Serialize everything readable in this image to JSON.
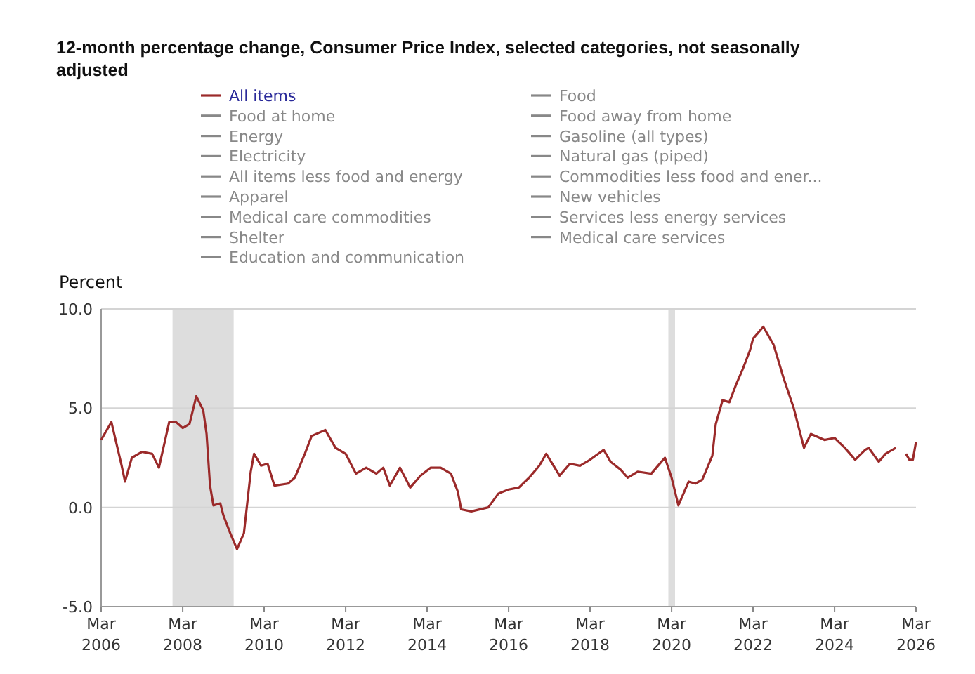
{
  "chart_data": {
    "type": "line",
    "title": "12-month percentage change, Consumer Price Index, selected categories, not seasonally adjusted",
    "ylabel": "Percent",
    "x": [
      "2006-03",
      "2006-06",
      "2006-09",
      "2006-10",
      "2006-12",
      "2007-03",
      "2007-06",
      "2007-08",
      "2007-11",
      "2008-01",
      "2008-03",
      "2008-05",
      "2008-07",
      "2008-09",
      "2008-10",
      "2008-11",
      "2008-12",
      "2009-02",
      "2009-03",
      "2009-05",
      "2009-07",
      "2009-09",
      "2009-11",
      "2009-12",
      "2010-02",
      "2010-04",
      "2010-06",
      "2010-10",
      "2010-12",
      "2011-03",
      "2011-05",
      "2011-09",
      "2011-12",
      "2012-03",
      "2012-06",
      "2012-09",
      "2012-12",
      "2013-02",
      "2013-04",
      "2013-07",
      "2013-10",
      "2014-01",
      "2014-04",
      "2014-07",
      "2014-10",
      "2014-12",
      "2015-01",
      "2015-04",
      "2015-09",
      "2015-12",
      "2016-03",
      "2016-06",
      "2016-09",
      "2016-12",
      "2017-02",
      "2017-06",
      "2017-09",
      "2017-12",
      "2018-03",
      "2018-07",
      "2018-09",
      "2018-12",
      "2019-02",
      "2019-05",
      "2019-09",
      "2019-12",
      "2020-01",
      "2020-03",
      "2020-05",
      "2020-08",
      "2020-10",
      "2020-12",
      "2021-03",
      "2021-04",
      "2021-06",
      "2021-08",
      "2021-10",
      "2021-12",
      "2022-02",
      "2022-03",
      "2022-06",
      "2022-09",
      "2022-12",
      "2023-03",
      "2023-06",
      "2023-08",
      "2023-12",
      "2024-03",
      "2024-06",
      "2024-09",
      "2024-12",
      "2025-01",
      "2025-04",
      "2025-06",
      "2025-09",
      "2025-10",
      "2025-12",
      "2026-01",
      "2026-02",
      "2026-03"
    ],
    "series": [
      {
        "name": "All items",
        "color": "#9b2a2a",
        "values": [
          3.4,
          4.3,
          2.1,
          1.3,
          2.5,
          2.8,
          2.7,
          2.0,
          4.3,
          4.3,
          4.0,
          4.2,
          5.6,
          4.9,
          3.7,
          1.1,
          0.1,
          0.2,
          -0.4,
          -1.3,
          -2.1,
          -1.3,
          1.8,
          2.7,
          2.1,
          2.2,
          1.1,
          1.2,
          1.5,
          2.7,
          3.6,
          3.9,
          3.0,
          2.7,
          1.7,
          2.0,
          1.7,
          2.0,
          1.1,
          2.0,
          1.0,
          1.6,
          2.0,
          2.0,
          1.7,
          0.8,
          -0.1,
          -0.2,
          0.0,
          0.7,
          0.9,
          1.0,
          1.5,
          2.1,
          2.7,
          1.6,
          2.2,
          2.1,
          2.4,
          2.9,
          2.3,
          1.9,
          1.5,
          1.8,
          1.7,
          2.3,
          2.5,
          1.5,
          0.1,
          1.3,
          1.2,
          1.4,
          2.6,
          4.2,
          5.4,
          5.3,
          6.2,
          7.0,
          7.9,
          8.5,
          9.1,
          8.2,
          6.5,
          5.0,
          3.0,
          3.7,
          3.4,
          3.5,
          3.0,
          2.4,
          2.9,
          3.0,
          2.3,
          2.7,
          3.0,
          null,
          2.7,
          2.4,
          2.4,
          3.3
        ]
      },
      {
        "name": "Food",
        "color": "#888888",
        "values": [
          null,
          null,
          null,
          null,
          null,
          null,
          null,
          null,
          null,
          null,
          null,
          null,
          null,
          null,
          null,
          null,
          null,
          null,
          null,
          null,
          null,
          null,
          null,
          null,
          null,
          null,
          null,
          null,
          null,
          null,
          null,
          null,
          null,
          null,
          null,
          null,
          null,
          null,
          null,
          null,
          null,
          null,
          null,
          null,
          null,
          null,
          null,
          null,
          null,
          null,
          null,
          null,
          null,
          null,
          null,
          null,
          null,
          null,
          null,
          null,
          null,
          null,
          null,
          null,
          null,
          null,
          null,
          null,
          null,
          null,
          null,
          null,
          null,
          null,
          null,
          null,
          null,
          null,
          null,
          null,
          null,
          null,
          null,
          null,
          null,
          null,
          null,
          null,
          null,
          null,
          null,
          null,
          null,
          null,
          null,
          null,
          null,
          null,
          null,
          null
        ]
      },
      {
        "name": "Food at home",
        "color": "#888888",
        "values": [
          null,
          null,
          null,
          null,
          null,
          null,
          null,
          null,
          null,
          null,
          null,
          null,
          null,
          null,
          null,
          null,
          null,
          null,
          null,
          null,
          null,
          null,
          null,
          null,
          null,
          null,
          null,
          null,
          null,
          null,
          null,
          null,
          null,
          null,
          null,
          null,
          null,
          null,
          null,
          null,
          null,
          null,
          null,
          null,
          null,
          null,
          null,
          null,
          null,
          null,
          null,
          null,
          null,
          null,
          null,
          null,
          null,
          null,
          null,
          null,
          null,
          null,
          null,
          null,
          null,
          null,
          null,
          null,
          null,
          null,
          null,
          null,
          null,
          null,
          null,
          null,
          null,
          null,
          null,
          null,
          null,
          null,
          null,
          null,
          null,
          null,
          null,
          null,
          null,
          null,
          null,
          null,
          null,
          null,
          null,
          null,
          null,
          null,
          null,
          null
        ]
      },
      {
        "name": "Food away from home",
        "color": "#888888",
        "values": [
          null,
          null,
          null,
          null,
          null,
          null,
          null,
          null,
          null,
          null,
          null,
          null,
          null,
          null,
          null,
          null,
          null,
          null,
          null,
          null,
          null,
          null,
          null,
          null,
          null,
          null,
          null,
          null,
          null,
          null,
          null,
          null,
          null,
          null,
          null,
          null,
          null,
          null,
          null,
          null,
          null,
          null,
          null,
          null,
          null,
          null,
          null,
          null,
          null,
          null,
          null,
          null,
          null,
          null,
          null,
          null,
          null,
          null,
          null,
          null,
          null,
          null,
          null,
          null,
          null,
          null,
          null,
          null,
          null,
          null,
          null,
          null,
          null,
          null,
          null,
          null,
          null,
          null,
          null,
          null,
          null,
          null,
          null,
          null,
          null,
          null,
          null,
          null,
          null,
          null,
          null,
          null,
          null,
          null,
          null,
          null,
          null,
          null,
          null,
          null
        ]
      },
      {
        "name": "Energy",
        "color": "#888888",
        "values": [
          null,
          null,
          null,
          null,
          null,
          null,
          null,
          null,
          null,
          null,
          null,
          null,
          null,
          null,
          null,
          null,
          null,
          null,
          null,
          null,
          null,
          null,
          null,
          null,
          null,
          null,
          null,
          null,
          null,
          null,
          null,
          null,
          null,
          null,
          null,
          null,
          null,
          null,
          null,
          null,
          null,
          null,
          null,
          null,
          null,
          null,
          null,
          null,
          null,
          null,
          null,
          null,
          null,
          null,
          null,
          null,
          null,
          null,
          null,
          null,
          null,
          null,
          null,
          null,
          null,
          null,
          null,
          null,
          null,
          null,
          null,
          null,
          null,
          null,
          null,
          null,
          null,
          null,
          null,
          null,
          null,
          null,
          null,
          null,
          null,
          null,
          null,
          null,
          null,
          null,
          null,
          null,
          null,
          null,
          null,
          null,
          null,
          null,
          null,
          null
        ]
      },
      {
        "name": "Gasoline (all types)",
        "color": "#888888",
        "values": [
          null,
          null,
          null,
          null,
          null,
          null,
          null,
          null,
          null,
          null,
          null,
          null,
          null,
          null,
          null,
          null,
          null,
          null,
          null,
          null,
          null,
          null,
          null,
          null,
          null,
          null,
          null,
          null,
          null,
          null,
          null,
          null,
          null,
          null,
          null,
          null,
          null,
          null,
          null,
          null,
          null,
          null,
          null,
          null,
          null,
          null,
          null,
          null,
          null,
          null,
          null,
          null,
          null,
          null,
          null,
          null,
          null,
          null,
          null,
          null,
          null,
          null,
          null,
          null,
          null,
          null,
          null,
          null,
          null,
          null,
          null,
          null,
          null,
          null,
          null,
          null,
          null,
          null,
          null,
          null,
          null,
          null,
          null,
          null,
          null,
          null,
          null,
          null,
          null,
          null,
          null,
          null,
          null,
          null,
          null,
          null,
          null,
          null,
          null,
          null
        ]
      },
      {
        "name": "Electricity",
        "color": "#888888",
        "values": [
          null,
          null,
          null,
          null,
          null,
          null,
          null,
          null,
          null,
          null,
          null,
          null,
          null,
          null,
          null,
          null,
          null,
          null,
          null,
          null,
          null,
          null,
          null,
          null,
          null,
          null,
          null,
          null,
          null,
          null,
          null,
          null,
          null,
          null,
          null,
          null,
          null,
          null,
          null,
          null,
          null,
          null,
          null,
          null,
          null,
          null,
          null,
          null,
          null,
          null,
          null,
          null,
          null,
          null,
          null,
          null,
          null,
          null,
          null,
          null,
          null,
          null,
          null,
          null,
          null,
          null,
          null,
          null,
          null,
          null,
          null,
          null,
          null,
          null,
          null,
          null,
          null,
          null,
          null,
          null,
          null,
          null,
          null,
          null,
          null,
          null,
          null,
          null,
          null,
          null,
          null,
          null,
          null,
          null,
          null,
          null,
          null,
          null,
          null,
          null
        ]
      },
      {
        "name": "Natural gas (piped)",
        "color": "#888888",
        "values": [
          null,
          null,
          null,
          null,
          null,
          null,
          null,
          null,
          null,
          null,
          null,
          null,
          null,
          null,
          null,
          null,
          null,
          null,
          null,
          null,
          null,
          null,
          null,
          null,
          null,
          null,
          null,
          null,
          null,
          null,
          null,
          null,
          null,
          null,
          null,
          null,
          null,
          null,
          null,
          null,
          null,
          null,
          null,
          null,
          null,
          null,
          null,
          null,
          null,
          null,
          null,
          null,
          null,
          null,
          null,
          null,
          null,
          null,
          null,
          null,
          null,
          null,
          null,
          null,
          null,
          null,
          null,
          null,
          null,
          null,
          null,
          null,
          null,
          null,
          null,
          null,
          null,
          null,
          null,
          null,
          null,
          null,
          null,
          null,
          null,
          null,
          null,
          null,
          null,
          null,
          null,
          null,
          null,
          null,
          null,
          null,
          null,
          null,
          null,
          null
        ]
      },
      {
        "name": "All items less food and energy",
        "color": "#888888",
        "values": [
          null,
          null,
          null,
          null,
          null,
          null,
          null,
          null,
          null,
          null,
          null,
          null,
          null,
          null,
          null,
          null,
          null,
          null,
          null,
          null,
          null,
          null,
          null,
          null,
          null,
          null,
          null,
          null,
          null,
          null,
          null,
          null,
          null,
          null,
          null,
          null,
          null,
          null,
          null,
          null,
          null,
          null,
          null,
          null,
          null,
          null,
          null,
          null,
          null,
          null,
          null,
          null,
          null,
          null,
          null,
          null,
          null,
          null,
          null,
          null,
          null,
          null,
          null,
          null,
          null,
          null,
          null,
          null,
          null,
          null,
          null,
          null,
          null,
          null,
          null,
          null,
          null,
          null,
          null,
          null,
          null,
          null,
          null,
          null,
          null,
          null,
          null,
          null,
          null,
          null,
          null,
          null,
          null,
          null,
          null,
          null,
          null,
          null,
          null,
          null
        ]
      },
      {
        "name": "Commodities less food and ener...",
        "color": "#888888",
        "values": [
          null,
          null,
          null,
          null,
          null,
          null,
          null,
          null,
          null,
          null,
          null,
          null,
          null,
          null,
          null,
          null,
          null,
          null,
          null,
          null,
          null,
          null,
          null,
          null,
          null,
          null,
          null,
          null,
          null,
          null,
          null,
          null,
          null,
          null,
          null,
          null,
          null,
          null,
          null,
          null,
          null,
          null,
          null,
          null,
          null,
          null,
          null,
          null,
          null,
          null,
          null,
          null,
          null,
          null,
          null,
          null,
          null,
          null,
          null,
          null,
          null,
          null,
          null,
          null,
          null,
          null,
          null,
          null,
          null,
          null,
          null,
          null,
          null,
          null,
          null,
          null,
          null,
          null,
          null,
          null,
          null,
          null,
          null,
          null,
          null,
          null,
          null,
          null,
          null,
          null,
          null,
          null,
          null,
          null,
          null,
          null,
          null,
          null,
          null,
          null
        ]
      },
      {
        "name": "Apparel",
        "color": "#888888",
        "values": [
          null,
          null,
          null,
          null,
          null,
          null,
          null,
          null,
          null,
          null,
          null,
          null,
          null,
          null,
          null,
          null,
          null,
          null,
          null,
          null,
          null,
          null,
          null,
          null,
          null,
          null,
          null,
          null,
          null,
          null,
          null,
          null,
          null,
          null,
          null,
          null,
          null,
          null,
          null,
          null,
          null,
          null,
          null,
          null,
          null,
          null,
          null,
          null,
          null,
          null,
          null,
          null,
          null,
          null,
          null,
          null,
          null,
          null,
          null,
          null,
          null,
          null,
          null,
          null,
          null,
          null,
          null,
          null,
          null,
          null,
          null,
          null,
          null,
          null,
          null,
          null,
          null,
          null,
          null,
          null,
          null,
          null,
          null,
          null,
          null,
          null,
          null,
          null,
          null,
          null,
          null,
          null,
          null,
          null,
          null,
          null,
          null,
          null,
          null,
          null
        ]
      },
      {
        "name": "New vehicles",
        "color": "#888888",
        "values": [
          null,
          null,
          null,
          null,
          null,
          null,
          null,
          null,
          null,
          null,
          null,
          null,
          null,
          null,
          null,
          null,
          null,
          null,
          null,
          null,
          null,
          null,
          null,
          null,
          null,
          null,
          null,
          null,
          null,
          null,
          null,
          null,
          null,
          null,
          null,
          null,
          null,
          null,
          null,
          null,
          null,
          null,
          null,
          null,
          null,
          null,
          null,
          null,
          null,
          null,
          null,
          null,
          null,
          null,
          null,
          null,
          null,
          null,
          null,
          null,
          null,
          null,
          null,
          null,
          null,
          null,
          null,
          null,
          null,
          null,
          null,
          null,
          null,
          null,
          null,
          null,
          null,
          null,
          null,
          null,
          null,
          null,
          null,
          null,
          null,
          null,
          null,
          null,
          null,
          null,
          null,
          null,
          null,
          null,
          null,
          null,
          null,
          null,
          null,
          null
        ]
      },
      {
        "name": "Medical care commodities",
        "color": "#888888",
        "values": [
          null,
          null,
          null,
          null,
          null,
          null,
          null,
          null,
          null,
          null,
          null,
          null,
          null,
          null,
          null,
          null,
          null,
          null,
          null,
          null,
          null,
          null,
          null,
          null,
          null,
          null,
          null,
          null,
          null,
          null,
          null,
          null,
          null,
          null,
          null,
          null,
          null,
          null,
          null,
          null,
          null,
          null,
          null,
          null,
          null,
          null,
          null,
          null,
          null,
          null,
          null,
          null,
          null,
          null,
          null,
          null,
          null,
          null,
          null,
          null,
          null,
          null,
          null,
          null,
          null,
          null,
          null,
          null,
          null,
          null,
          null,
          null,
          null,
          null,
          null,
          null,
          null,
          null,
          null,
          null,
          null,
          null,
          null,
          null,
          null,
          null,
          null,
          null,
          null,
          null,
          null,
          null,
          null,
          null,
          null,
          null,
          null,
          null,
          null,
          null
        ]
      },
      {
        "name": "Services less energy services",
        "color": "#888888",
        "values": [
          null,
          null,
          null,
          null,
          null,
          null,
          null,
          null,
          null,
          null,
          null,
          null,
          null,
          null,
          null,
          null,
          null,
          null,
          null,
          null,
          null,
          null,
          null,
          null,
          null,
          null,
          null,
          null,
          null,
          null,
          null,
          null,
          null,
          null,
          null,
          null,
          null,
          null,
          null,
          null,
          null,
          null,
          null,
          null,
          null,
          null,
          null,
          null,
          null,
          null,
          null,
          null,
          null,
          null,
          null,
          null,
          null,
          null,
          null,
          null,
          null,
          null,
          null,
          null,
          null,
          null,
          null,
          null,
          null,
          null,
          null,
          null,
          null,
          null,
          null,
          null,
          null,
          null,
          null,
          null,
          null,
          null,
          null,
          null,
          null,
          null,
          null,
          null,
          null,
          null,
          null,
          null,
          null,
          null,
          null,
          null,
          null,
          null,
          null,
          null
        ]
      },
      {
        "name": "Shelter",
        "color": "#888888",
        "values": [
          null,
          null,
          null,
          null,
          null,
          null,
          null,
          null,
          null,
          null,
          null,
          null,
          null,
          null,
          null,
          null,
          null,
          null,
          null,
          null,
          null,
          null,
          null,
          null,
          null,
          null,
          null,
          null,
          null,
          null,
          null,
          null,
          null,
          null,
          null,
          null,
          null,
          null,
          null,
          null,
          null,
          null,
          null,
          null,
          null,
          null,
          null,
          null,
          null,
          null,
          null,
          null,
          null,
          null,
          null,
          null,
          null,
          null,
          null,
          null,
          null,
          null,
          null,
          null,
          null,
          null,
          null,
          null,
          null,
          null,
          null,
          null,
          null,
          null,
          null,
          null,
          null,
          null,
          null,
          null,
          null,
          null,
          null,
          null,
          null,
          null,
          null,
          null,
          null,
          null,
          null,
          null,
          null,
          null,
          null,
          null,
          null,
          null,
          null,
          null
        ]
      },
      {
        "name": "Medical care services",
        "color": "#888888",
        "values": [
          null,
          null,
          null,
          null,
          null,
          null,
          null,
          null,
          null,
          null,
          null,
          null,
          null,
          null,
          null,
          null,
          null,
          null,
          null,
          null,
          null,
          null,
          null,
          null,
          null,
          null,
          null,
          null,
          null,
          null,
          null,
          null,
          null,
          null,
          null,
          null,
          null,
          null,
          null,
          null,
          null,
          null,
          null,
          null,
          null,
          null,
          null,
          null,
          null,
          null,
          null,
          null,
          null,
          null,
          null,
          null,
          null,
          null,
          null,
          null,
          null,
          null,
          null,
          null,
          null,
          null,
          null,
          null,
          null,
          null,
          null,
          null,
          null,
          null,
          null,
          null,
          null,
          null,
          null,
          null,
          null,
          null,
          null,
          null,
          null,
          null,
          null,
          null,
          null,
          null,
          null,
          null,
          null,
          null,
          null,
          null,
          null,
          null,
          null,
          null
        ]
      },
      {
        "name": "Education and communication",
        "color": "#888888",
        "values": [
          null,
          null,
          null,
          null,
          null,
          null,
          null,
          null,
          null,
          null,
          null,
          null,
          null,
          null,
          null,
          null,
          null,
          null,
          null,
          null,
          null,
          null,
          null,
          null,
          null,
          null,
          null,
          null,
          null,
          null,
          null,
          null,
          null,
          null,
          null,
          null,
          null,
          null,
          null,
          null,
          null,
          null,
          null,
          null,
          null,
          null,
          null,
          null,
          null,
          null,
          null,
          null,
          null,
          null,
          null,
          null,
          null,
          null,
          null,
          null,
          null,
          null,
          null,
          null,
          null,
          null,
          null,
          null,
          null,
          null,
          null,
          null,
          null,
          null,
          null,
          null,
          null,
          null,
          null,
          null,
          null,
          null,
          null,
          null,
          null,
          null,
          null,
          null,
          null,
          null,
          null,
          null,
          null,
          null,
          null,
          null,
          null,
          null,
          null,
          null
        ]
      }
    ],
    "xlim": [
      "2006-03",
      "2026-03"
    ],
    "xticks": [
      {
        "value": "2006-03",
        "label": "Mar 2006"
      },
      {
        "value": "2008-03",
        "label": "Mar 2008"
      },
      {
        "value": "2010-03",
        "label": "Mar 2010"
      },
      {
        "value": "2012-03",
        "label": "Mar 2012"
      },
      {
        "value": "2014-03",
        "label": "Mar 2014"
      },
      {
        "value": "2016-03",
        "label": "Mar 2016"
      },
      {
        "value": "2018-03",
        "label": "Mar 2018"
      },
      {
        "value": "2020-03",
        "label": "Mar 2020"
      },
      {
        "value": "2022-03",
        "label": "Mar 2022"
      },
      {
        "value": "2024-03",
        "label": "Mar 2024"
      },
      {
        "value": "2026-03",
        "label": "Mar 2026"
      }
    ],
    "ylim": [
      -5,
      10
    ],
    "yticks": [
      {
        "value": -5,
        "label": "-5.0"
      },
      {
        "value": 0,
        "label": "0.0"
      },
      {
        "value": 5,
        "label": "5.0"
      },
      {
        "value": 10,
        "label": "10.0"
      }
    ],
    "bands": [
      {
        "axis": "x",
        "from": "2007-12",
        "to": "2009-06",
        "color": "#dddddd"
      },
      {
        "axis": "x",
        "from": "2020-02",
        "to": "2020-04",
        "color": "#dddddd"
      }
    ],
    "grid": "y",
    "legend": "top",
    "line_style": "solid",
    "marker": "none"
  }
}
